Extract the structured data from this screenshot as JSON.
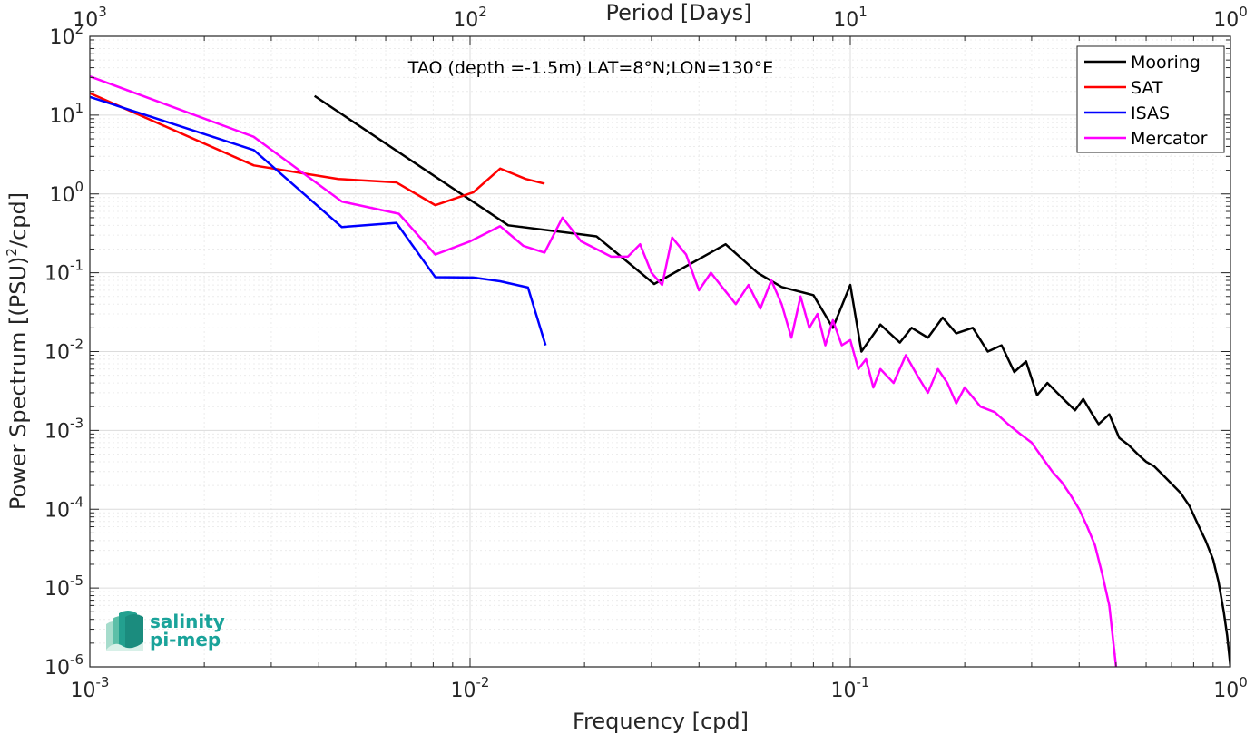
{
  "chart_data": {
    "type": "line",
    "annotation": "TAO (depth =-1.5m) LAT=8°N;LON=130°E",
    "xlabel": "Frequency [cpd]",
    "ylabel": "Power Spectrum [(PSU)",
    "ylabel_sup": "2",
    "ylabel_tail": "/cpd]",
    "top_xlabel": "Period [Days]",
    "xscale": "log",
    "yscale": "log",
    "xlim": [
      0.001,
      1
    ],
    "ylim": [
      1e-06,
      100
    ],
    "x_ticks": [
      {
        "value": 0.001,
        "base": "10",
        "exp": "-3"
      },
      {
        "value": 0.01,
        "base": "10",
        "exp": "-2"
      },
      {
        "value": 0.1,
        "base": "10",
        "exp": "-1"
      },
      {
        "value": 1,
        "base": "10",
        "exp": "0"
      }
    ],
    "top_ticks": [
      {
        "value": 0.001,
        "base": "10",
        "exp": "3"
      },
      {
        "value": 0.01,
        "base": "10",
        "exp": "2"
      },
      {
        "value": 0.1,
        "base": "10",
        "exp": "1"
      },
      {
        "value": 1,
        "base": "10",
        "exp": "0"
      }
    ],
    "y_ticks": [
      {
        "value": 100,
        "base": "10",
        "exp": "2"
      },
      {
        "value": 10,
        "base": "10",
        "exp": "1"
      },
      {
        "value": 1,
        "base": "10",
        "exp": "0"
      },
      {
        "value": 0.1,
        "base": "10",
        "exp": "-1"
      },
      {
        "value": 0.01,
        "base": "10",
        "exp": "-2"
      },
      {
        "value": 0.001,
        "base": "10",
        "exp": "-3"
      },
      {
        "value": 0.0001,
        "base": "10",
        "exp": "-4"
      },
      {
        "value": 1e-05,
        "base": "10",
        "exp": "-5"
      },
      {
        "value": 1e-06,
        "base": "10",
        "exp": "-6"
      }
    ],
    "grid": true,
    "legend_position": "top-right",
    "series": [
      {
        "name": "Mooring",
        "color": "#000000",
        "points": [
          [
            0.0039,
            17.5
          ],
          [
            0.0126,
            0.4
          ],
          [
            0.0215,
            0.29
          ],
          [
            0.0305,
            0.072
          ],
          [
            0.047,
            0.23
          ],
          [
            0.057,
            0.1
          ],
          [
            0.066,
            0.066
          ],
          [
            0.08,
            0.052
          ],
          [
            0.09,
            0.02
          ],
          [
            0.1,
            0.07
          ],
          [
            0.107,
            0.01
          ],
          [
            0.12,
            0.022
          ],
          [
            0.135,
            0.013
          ],
          [
            0.145,
            0.02
          ],
          [
            0.16,
            0.015
          ],
          [
            0.175,
            0.027
          ],
          [
            0.19,
            0.017
          ],
          [
            0.21,
            0.02
          ],
          [
            0.23,
            0.01
          ],
          [
            0.25,
            0.012
          ],
          [
            0.27,
            0.0055
          ],
          [
            0.29,
            0.0075
          ],
          [
            0.31,
            0.0028
          ],
          [
            0.33,
            0.004
          ],
          [
            0.35,
            0.003
          ],
          [
            0.37,
            0.0023
          ],
          [
            0.39,
            0.0018
          ],
          [
            0.41,
            0.0025
          ],
          [
            0.43,
            0.0017
          ],
          [
            0.45,
            0.0012
          ],
          [
            0.48,
            0.0016
          ],
          [
            0.51,
            0.0008
          ],
          [
            0.54,
            0.00065
          ],
          [
            0.57,
            0.0005
          ],
          [
            0.6,
            0.0004
          ],
          [
            0.63,
            0.00035
          ],
          [
            0.66,
            0.00028
          ],
          [
            0.7,
            0.00021
          ],
          [
            0.74,
            0.00016
          ],
          [
            0.78,
            0.00011
          ],
          [
            0.82,
            6.5e-05
          ],
          [
            0.86,
            4e-05
          ],
          [
            0.9,
            2.3e-05
          ],
          [
            0.93,
            1.2e-05
          ],
          [
            0.96,
            5e-06
          ],
          [
            0.98,
            2.5e-06
          ],
          [
            1.0,
            1e-06
          ]
        ]
      },
      {
        "name": "SAT",
        "color": "#ff0000",
        "points": [
          [
            0.001,
            19
          ],
          [
            0.0027,
            2.3
          ],
          [
            0.0045,
            1.55
          ],
          [
            0.0064,
            1.4
          ],
          [
            0.0081,
            0.72
          ],
          [
            0.0102,
            1.05
          ],
          [
            0.012,
            2.1
          ],
          [
            0.014,
            1.55
          ],
          [
            0.0157,
            1.35
          ]
        ]
      },
      {
        "name": "ISAS",
        "color": "#0000ff",
        "points": [
          [
            0.001,
            17
          ],
          [
            0.0027,
            3.6
          ],
          [
            0.0046,
            0.38
          ],
          [
            0.0064,
            0.43
          ],
          [
            0.0081,
            0.088
          ],
          [
            0.0102,
            0.087
          ],
          [
            0.012,
            0.078
          ],
          [
            0.0142,
            0.065
          ],
          [
            0.0158,
            0.012
          ]
        ]
      },
      {
        "name": "Mercator",
        "color": "#ff00ff",
        "points": [
          [
            0.001,
            31
          ],
          [
            0.0027,
            5.3
          ],
          [
            0.0046,
            0.8
          ],
          [
            0.0065,
            0.56
          ],
          [
            0.0081,
            0.17
          ],
          [
            0.01,
            0.25
          ],
          [
            0.012,
            0.39
          ],
          [
            0.0138,
            0.22
          ],
          [
            0.0157,
            0.18
          ],
          [
            0.0175,
            0.5
          ],
          [
            0.0196,
            0.25
          ],
          [
            0.0215,
            0.2
          ],
          [
            0.0235,
            0.16
          ],
          [
            0.026,
            0.16
          ],
          [
            0.028,
            0.23
          ],
          [
            0.03,
            0.1
          ],
          [
            0.032,
            0.07
          ],
          [
            0.034,
            0.28
          ],
          [
            0.037,
            0.17
          ],
          [
            0.04,
            0.06
          ],
          [
            0.043,
            0.1
          ],
          [
            0.046,
            0.066
          ],
          [
            0.05,
            0.04
          ],
          [
            0.054,
            0.07
          ],
          [
            0.058,
            0.035
          ],
          [
            0.062,
            0.08
          ],
          [
            0.066,
            0.04
          ],
          [
            0.07,
            0.015
          ],
          [
            0.074,
            0.05
          ],
          [
            0.078,
            0.02
          ],
          [
            0.082,
            0.03
          ],
          [
            0.086,
            0.012
          ],
          [
            0.09,
            0.025
          ],
          [
            0.095,
            0.012
          ],
          [
            0.1,
            0.014
          ],
          [
            0.105,
            0.006
          ],
          [
            0.11,
            0.008
          ],
          [
            0.115,
            0.0035
          ],
          [
            0.12,
            0.006
          ],
          [
            0.13,
            0.004
          ],
          [
            0.14,
            0.009
          ],
          [
            0.15,
            0.005
          ],
          [
            0.16,
            0.003
          ],
          [
            0.17,
            0.006
          ],
          [
            0.18,
            0.004
          ],
          [
            0.19,
            0.0022
          ],
          [
            0.2,
            0.0035
          ],
          [
            0.22,
            0.002
          ],
          [
            0.24,
            0.0017
          ],
          [
            0.26,
            0.0012
          ],
          [
            0.28,
            0.0009
          ],
          [
            0.3,
            0.0007
          ],
          [
            0.32,
            0.00045
          ],
          [
            0.34,
            0.0003
          ],
          [
            0.36,
            0.00022
          ],
          [
            0.38,
            0.00015
          ],
          [
            0.4,
            0.0001
          ],
          [
            0.42,
            6e-05
          ],
          [
            0.44,
            3.5e-05
          ],
          [
            0.46,
            1.5e-05
          ],
          [
            0.48,
            6e-06
          ],
          [
            0.5,
            1e-06
          ]
        ]
      }
    ]
  },
  "logo": {
    "line1": "salinity",
    "line2": "pi-mep"
  }
}
